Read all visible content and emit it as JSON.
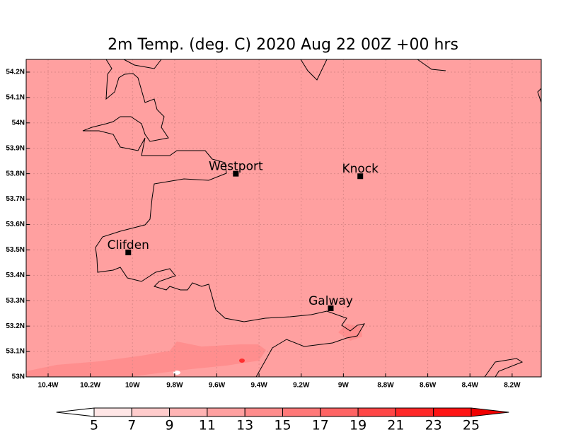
{
  "map": {
    "title": "2m Temp. (deg. C) 2020 Aug 22 00Z +00 hrs",
    "lonlim": [
      -10.504,
      -8.062
    ],
    "latlim": [
      53,
      54.25
    ],
    "lonticks": [
      {
        "value": -10.4,
        "label": "10.4W"
      },
      {
        "value": -10.2,
        "label": "10.2W"
      },
      {
        "value": -10,
        "label": "10W"
      },
      {
        "value": -9.8,
        "label": "9.8W"
      },
      {
        "value": -9.6,
        "label": "9.6W"
      },
      {
        "value": -9.4,
        "label": "9.4W"
      },
      {
        "value": -9.2,
        "label": "9.2W"
      },
      {
        "value": -9,
        "label": "9W"
      },
      {
        "value": -8.8,
        "label": "8.8W"
      },
      {
        "value": -8.6,
        "label": "8.6W"
      },
      {
        "value": -8.4,
        "label": "8.4W"
      },
      {
        "value": -8.2,
        "label": "8.2W"
      }
    ],
    "latticks": [
      {
        "value": 53,
        "label": "53N"
      },
      {
        "value": 53.1,
        "label": "53.1N"
      },
      {
        "value": 53.2,
        "label": "53.2N"
      },
      {
        "value": 53.3,
        "label": "53.3N"
      },
      {
        "value": 53.4,
        "label": "53.4N"
      },
      {
        "value": 53.5,
        "label": "53.5N"
      },
      {
        "value": 53.6,
        "label": "53.6N"
      },
      {
        "value": 53.7,
        "label": "53.7N"
      },
      {
        "value": 53.8,
        "label": "53.8N"
      },
      {
        "value": 53.9,
        "label": "53.9N"
      },
      {
        "value": 54,
        "label": "54N"
      },
      {
        "value": 54.1,
        "label": "54.1N"
      },
      {
        "value": 54.2,
        "label": "54.2N"
      }
    ],
    "grid": true,
    "field_color": "#ffa0a0",
    "cities": [
      {
        "name": "Westport",
        "lon": -9.51,
        "lat": 53.8
      },
      {
        "name": "Knock",
        "lon": -8.92,
        "lat": 53.79
      },
      {
        "name": "Clifden",
        "lon": -10.02,
        "lat": 53.49
      },
      {
        "name": "Galway",
        "lon": -9.06,
        "lat": 53.27
      }
    ],
    "colorbar": {
      "levels": [
        5,
        7,
        9,
        11,
        13,
        15,
        17,
        19,
        21,
        23,
        25
      ],
      "colors": [
        "#ffffff",
        "#ffe6e6",
        "#ffcccc",
        "#ffb4b4",
        "#ffa0a0",
        "#ff8c8c",
        "#ff7878",
        "#ff6464",
        "#ff4646",
        "#ff2828",
        "#ff1414",
        "#f00000"
      ]
    }
  }
}
